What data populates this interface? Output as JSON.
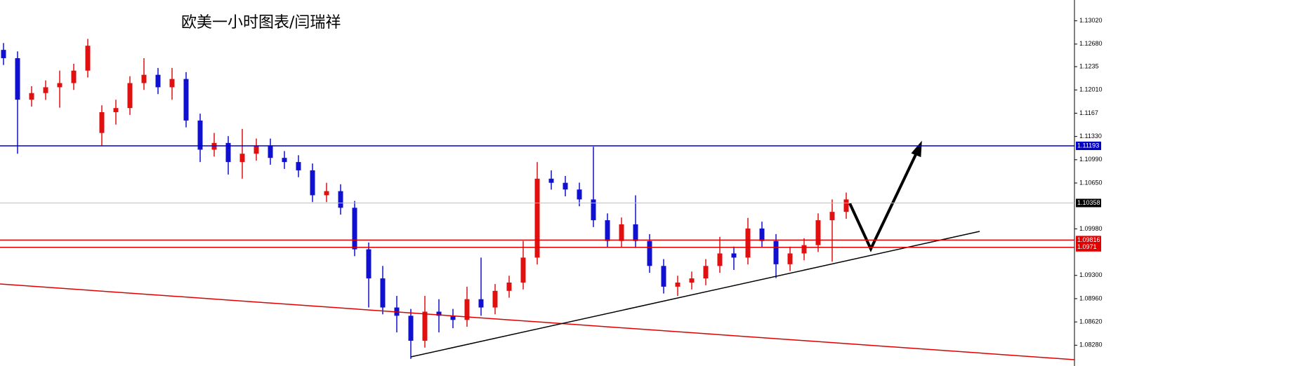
{
  "chart_data": {
    "type": "candlestick",
    "title": "欧美一小时图表/闫瑞祥",
    "ylim": [
      1.07976,
      1.13324
    ],
    "yticks": [
      {
        "value": 1.1302,
        "label": "1.13020"
      },
      {
        "value": 1.1268,
        "label": "1.12680"
      },
      1.1235,
      {
        "value": 1.1201,
        "label": "1.12010"
      },
      1.1167,
      {
        "value": 1.1133,
        "label": "1.11330"
      },
      {
        "value": 1.1099,
        "label": "1.10990"
      },
      {
        "value": 1.1065,
        "label": "1.10650"
      },
      {
        "value": 1.0998,
        "label": "1.09980"
      },
      {
        "value": 1.093,
        "label": "1.09300"
      },
      {
        "value": 1.0896,
        "label": "1.08960"
      },
      {
        "value": 1.0862,
        "label": "1.08620"
      },
      {
        "value": 1.0828,
        "label": "1.08280"
      }
    ],
    "up_color": "#e01010",
    "down_color": "#1010d0",
    "levels": [
      {
        "value": 1.11193,
        "color": "#0000c8"
      },
      {
        "value": 1.10358,
        "color": "#000000",
        "line_color": "#c0c0c0"
      },
      {
        "value": 1.09816,
        "color": "#e00000"
      },
      {
        "value": 1.0971,
        "color": "#e00000"
      }
    ],
    "candles": [
      [
        1.12595,
        1.12695,
        1.12374,
        1.12474
      ],
      [
        1.12474,
        1.12574,
        1.11078,
        1.11867
      ],
      [
        1.11867,
        1.12064,
        1.11767,
        1.11964
      ],
      [
        1.11964,
        1.12149,
        1.11864,
        1.12049
      ],
      [
        1.12049,
        1.12292,
        1.1175,
        1.1211
      ],
      [
        1.1211,
        1.12392,
        1.1201,
        1.12292
      ],
      [
        1.12292,
        1.12756,
        1.12192,
        1.12656
      ],
      [
        1.11381,
        1.11785,
        1.112,
        1.11685
      ],
      [
        1.11685,
        1.11867,
        1.11503,
        1.11745
      ],
      [
        1.11745,
        1.1221,
        1.11645,
        1.1211
      ],
      [
        1.1211,
        1.12474,
        1.1201,
        1.12231
      ],
      [
        1.12231,
        1.12331,
        1.11949,
        1.12049
      ],
      [
        1.12049,
        1.12331,
        1.11867,
        1.1217
      ],
      [
        1.1217,
        1.1227,
        1.11463,
        1.11563
      ],
      [
        1.11563,
        1.11663,
        1.10956,
        1.11137
      ],
      [
        1.11137,
        1.11381,
        1.11037,
        1.11235
      ],
      [
        1.11235,
        1.11335,
        1.10774,
        1.10956
      ],
      [
        1.10956,
        1.1144,
        1.10713,
        1.11078
      ],
      [
        1.11078,
        1.11299,
        1.10978,
        1.11199
      ],
      [
        1.11199,
        1.11299,
        1.10917,
        1.11017
      ],
      [
        1.11017,
        1.11117,
        1.10856,
        1.10956
      ],
      [
        1.10956,
        1.11056,
        1.10735,
        1.10835
      ],
      [
        1.10835,
        1.10935,
        1.10371,
        1.10471
      ],
      [
        1.10471,
        1.10653,
        1.10371,
        1.10531
      ],
      [
        1.10531,
        1.10631,
        1.10188,
        1.10288
      ],
      [
        1.10288,
        1.10388,
        1.09581,
        1.09681
      ],
      [
        1.09681,
        1.09781,
        1.08831,
        1.09256
      ],
      [
        1.09256,
        1.09438,
        1.08731,
        1.08831
      ],
      [
        1.08831,
        1.09,
        1.08467,
        1.0871
      ],
      [
        1.0871,
        1.0881,
        1.0808,
        1.08345
      ],
      [
        1.08345,
        1.09,
        1.08245,
        1.0877
      ],
      [
        1.0877,
        1.08952,
        1.08467,
        1.0871
      ],
      [
        1.0871,
        1.0881,
        1.08528,
        1.08649
      ],
      [
        1.08649,
        1.09135,
        1.08549,
        1.08952
      ],
      [
        1.08952,
        1.0956,
        1.0871,
        1.08831
      ],
      [
        1.08831,
        1.09174,
        1.08731,
        1.09074
      ],
      [
        1.09074,
        1.09295,
        1.08974,
        1.09195
      ],
      [
        1.09195,
        1.09803,
        1.09095,
        1.0956
      ],
      [
        1.0956,
        1.10956,
        1.0946,
        1.10713
      ],
      [
        1.10713,
        1.10835,
        1.10553,
        1.10653
      ],
      [
        1.10653,
        1.10753,
        1.10455,
        1.10555
      ],
      [
        1.10555,
        1.10655,
        1.1031,
        1.1041
      ],
      [
        1.1041,
        1.1118,
        1.10006,
        1.10106
      ],
      [
        1.10106,
        1.10206,
        1.09703,
        1.09803
      ],
      [
        1.09803,
        1.10146,
        1.09703,
        1.10046
      ],
      [
        1.10046,
        1.1047,
        1.097,
        1.09803
      ],
      [
        1.09803,
        1.09903,
        1.09338,
        1.09438
      ],
      [
        1.09438,
        1.09538,
        1.09035,
        1.09135
      ],
      [
        1.09135,
        1.09295,
        1.09,
        1.09195
      ],
      [
        1.09195,
        1.09356,
        1.09095,
        1.09256
      ],
      [
        1.09256,
        1.09538,
        1.09156,
        1.09438
      ],
      [
        1.09438,
        1.09863,
        1.09338,
        1.09621
      ],
      [
        1.09621,
        1.09721,
        1.0938,
        1.0956
      ],
      [
        1.0956,
        1.1014,
        1.0946,
        1.09985
      ],
      [
        1.09985,
        1.10085,
        1.09703,
        1.09803
      ],
      [
        1.09803,
        1.09903,
        1.0926,
        1.09463
      ],
      [
        1.09463,
        1.09721,
        1.09363,
        1.09621
      ],
      [
        1.09621,
        1.09842,
        1.09521,
        1.09742
      ],
      [
        1.09742,
        1.10206,
        1.09642,
        1.10106
      ],
      [
        1.10106,
        1.1041,
        1.095,
        1.10228
      ],
      [
        1.10228,
        1.1051,
        1.10128,
        1.1041
      ]
    ]
  }
}
